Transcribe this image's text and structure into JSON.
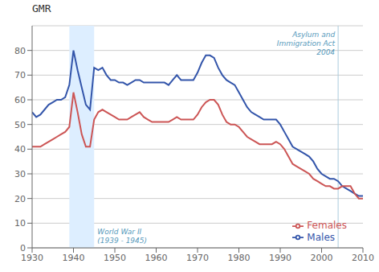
{
  "chart_data": {
    "type": "line",
    "title": "GMR",
    "x": [
      1930,
      1931,
      1932,
      1933,
      1934,
      1935,
      1936,
      1937,
      1938,
      1939,
      1940,
      1941,
      1942,
      1943,
      1944,
      1945,
      1946,
      1947,
      1948,
      1949,
      1950,
      1951,
      1952,
      1953,
      1954,
      1955,
      1956,
      1957,
      1958,
      1959,
      1960,
      1961,
      1962,
      1963,
      1964,
      1965,
      1966,
      1967,
      1968,
      1969,
      1970,
      1971,
      1972,
      1973,
      1974,
      1975,
      1976,
      1977,
      1978,
      1979,
      1980,
      1981,
      1982,
      1983,
      1984,
      1985,
      1986,
      1987,
      1988,
      1989,
      1990,
      1991,
      1992,
      1993,
      1994,
      1995,
      1996,
      1997,
      1998,
      1999,
      2000,
      2001,
      2002,
      2003,
      2004,
      2005,
      2006,
      2007,
      2008,
      2009,
      2010
    ],
    "series": [
      {
        "name": "Males",
        "color": "#3355aa",
        "values": [
          55,
          53,
          54,
          56,
          58,
          59,
          60,
          60,
          61,
          66,
          80,
          72,
          65,
          58,
          56,
          73,
          72,
          73,
          70,
          68,
          68,
          67,
          67,
          66,
          67,
          68,
          68,
          67,
          67,
          67,
          67,
          67,
          67,
          66,
          68,
          70,
          68,
          68,
          68,
          68,
          71,
          75,
          78,
          78,
          77,
          73,
          70,
          68,
          67,
          66,
          63,
          60,
          57,
          55,
          54,
          53,
          52,
          52,
          52,
          52,
          50,
          47,
          44,
          41,
          40,
          39,
          38,
          37,
          35,
          32,
          30,
          29,
          28,
          28,
          27,
          25,
          24,
          23,
          22,
          21,
          21
        ]
      },
      {
        "name": "Females",
        "color": "#cc5555",
        "values": [
          41,
          41,
          41,
          42,
          43,
          44,
          45,
          46,
          47,
          49,
          63,
          55,
          46,
          41,
          41,
          52,
          55,
          56,
          55,
          54,
          53,
          52,
          52,
          52,
          53,
          54,
          55,
          53,
          52,
          51,
          51,
          51,
          51,
          51,
          52,
          53,
          52,
          52,
          52,
          52,
          54,
          57,
          59,
          60,
          60,
          58,
          54,
          51,
          50,
          50,
          49,
          47,
          45,
          44,
          43,
          42,
          42,
          42,
          42,
          43,
          42,
          40,
          37,
          34,
          33,
          32,
          31,
          30,
          28,
          27,
          26,
          25,
          25,
          24,
          24,
          25,
          25,
          25,
          22,
          20,
          20
        ]
      }
    ],
    "xlim": [
      1930,
      2010
    ],
    "ylim": [
      0,
      90
    ],
    "xticks": [
      1930,
      1940,
      1950,
      1960,
      1970,
      1980,
      1990,
      2000,
      2010
    ],
    "yticks": [
      0,
      10,
      20,
      30,
      40,
      50,
      60,
      70,
      80
    ],
    "grid": "y",
    "legend": "lower right",
    "annotations": [
      {
        "type": "span",
        "x": [
          1939,
          1945
        ],
        "text": "World War II\n(1939 - 1945)",
        "color": "#ddeeff",
        "text_color": "#5599bb"
      },
      {
        "type": "vline",
        "x": 2004,
        "text": "Asylum and\nImmigration Act\n2004",
        "color": "#aaccdd",
        "text_color": "#5599bb"
      }
    ]
  }
}
